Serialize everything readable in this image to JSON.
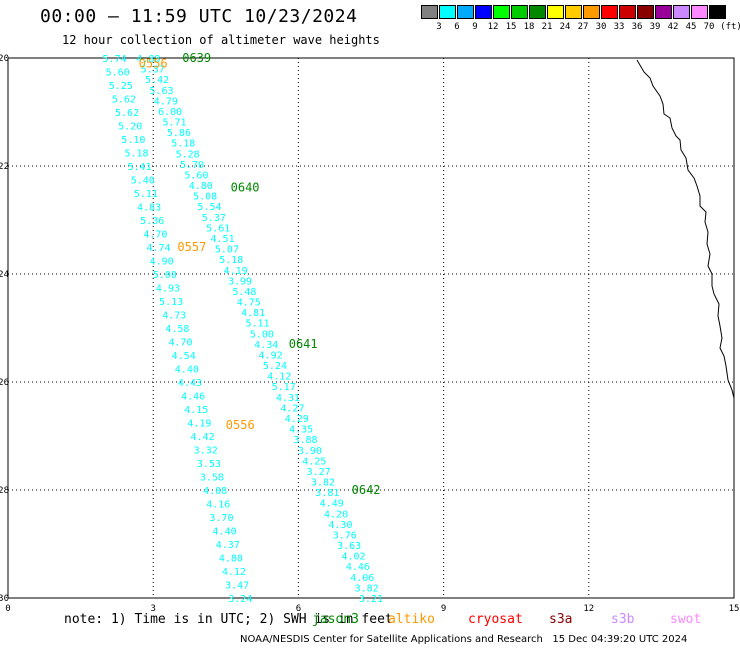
{
  "header": {
    "title": "00:00 – 11:59 UTC 10/23/2024",
    "subtitle": "12 hour collection of altimeter wave heights"
  },
  "color_scale": {
    "unit": "(ft)",
    "colors": [
      "#808080",
      "#00ffff",
      "#00aaff",
      "#0000ff",
      "#00ff00",
      "#00cc00",
      "#008800",
      "#ffff00",
      "#ffcc00",
      "#ff9900",
      "#ff0000",
      "#cc0000",
      "#880000",
      "#990099",
      "#cc88ff",
      "#ff88ff",
      "#000000"
    ],
    "labels": [
      "3",
      "6",
      "9",
      "12",
      "15",
      "18",
      "21",
      "24",
      "27",
      "30",
      "33",
      "36",
      "39",
      "42",
      "45",
      "70"
    ]
  },
  "footer": {
    "note": "note: 1) Time is in UTC; 2) SWH is in feet",
    "legend": [
      {
        "name": "jason3",
        "color": "#008800"
      },
      {
        "name": "altiko",
        "color": "#ff9900"
      },
      {
        "name": "cryosat",
        "color": "#ff0000"
      },
      {
        "name": "s3a",
        "color": "#880000"
      },
      {
        "name": "s3b",
        "color": "#cc88ff"
      },
      {
        "name": "swot",
        "color": "#ff88ff"
      }
    ],
    "credit": "NOAA/NESDIS Center for Satellite Applications and Research   15 Dec 04:39:20 UTC 2024"
  },
  "chart_data": {
    "type": "scatter",
    "title": "00:00 – 11:59 UTC 10/23/2024",
    "subtitle": "12 hour collection of altimeter wave heights",
    "xlim": [
      0,
      15
    ],
    "ylim": [
      -30,
      -20
    ],
    "xticks": [
      "0",
      "3",
      "6",
      "9",
      "12",
      "15"
    ],
    "yticks": [
      "-20",
      "-22",
      "-24",
      "-26",
      "-28",
      "-30"
    ],
    "grid": true,
    "point_color": "#00ffff",
    "tracks": [
      {
        "name": "jason3",
        "label": "0639",
        "label_at": [
          3.6,
          -20
        ],
        "values": []
      },
      {
        "name": "altiko",
        "label": "0556",
        "label_at": [
          2.7,
          -20.1
        ],
        "values": []
      },
      {
        "name": "jason3",
        "label": "0640",
        "label_at": [
          4.6,
          -22.4
        ],
        "values": []
      },
      {
        "name": "altiko",
        "label": "0557",
        "label_at": [
          3.5,
          -23.5
        ],
        "values": []
      },
      {
        "name": "jason3",
        "label": "0641",
        "label_at": [
          5.8,
          -25.3
        ],
        "values": []
      },
      {
        "name": "altiko",
        "label": "0556",
        "label_at": [
          4.5,
          -26.8
        ],
        "values": []
      },
      {
        "name": "jason3",
        "label": "0642",
        "label_at": [
          7.1,
          -28
        ],
        "values": []
      }
    ],
    "series": [
      {
        "name": "altiko",
        "x_start": 2.2,
        "y_start": -20.0,
        "x_end": 4.8,
        "y_end": -30.0,
        "values": [
          "5.74",
          "5.60",
          "5.25",
          "5.62",
          "5.62",
          "5.20",
          "5.10",
          "5.18",
          "5.41",
          "5.40",
          "5.11",
          "4.83",
          "5.36",
          "4.70",
          "4.74",
          "4.90",
          "5.00",
          "4.93",
          "5.13",
          "4.73",
          "4.58",
          "4.70",
          "4.54",
          "4.40",
          "4.43",
          "4.46",
          "4.15",
          "4.19",
          "4.42",
          "3.32",
          "3.53",
          "3.58",
          "4.08",
          "4.16",
          "3.70",
          "4.40",
          "4.37",
          "4.80",
          "4.12",
          "3.47",
          "3.24"
        ]
      },
      {
        "name": "jason3",
        "x_start": 2.9,
        "y_start": -20.0,
        "x_end": 7.5,
        "y_end": -30.0,
        "values": [
          "4.88",
          "5.37",
          "5.42",
          "5.63",
          "4.79",
          "6.00",
          "5.71",
          "5.86",
          "5.18",
          "5.28",
          "5.70",
          "5.60",
          "4.80",
          "5.08",
          "5.54",
          "5.37",
          "5.61",
          "4.51",
          "5.07",
          "5.18",
          "4.19",
          "3.99",
          "5.48",
          "4.75",
          "4.81",
          "5.11",
          "5.00",
          "4.34",
          "4.92",
          "5.24",
          "4.12",
          "5.17",
          "4.31",
          "4.27",
          "4.29",
          "4.35",
          "3.88",
          "3.90",
          "4.25",
          "3.27",
          "3.82",
          "3.81",
          "4.49",
          "4.20",
          "4.30",
          "3.76",
          "3.63",
          "4.02",
          "4.46",
          "4.06",
          "3.82",
          "3.21"
        ]
      }
    ]
  }
}
